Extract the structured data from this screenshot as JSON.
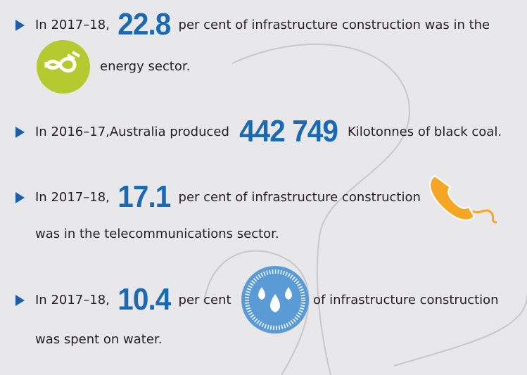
{
  "items": [
    {
      "prefix": "In 2017–18,",
      "number": "22.8",
      "text": "per cent of infrastructure construction was in the",
      "continuation": "energy sector."
    },
    {
      "prefix": "In 2016–17,Australia produced",
      "number": "442 749",
      "text": "Kilotonnes of black coal."
    },
    {
      "prefix": "In 2017–18,",
      "number": "17.1",
      "text": "per cent of infrastructure construction",
      "continuation": "was in the telecommunications sector."
    },
    {
      "prefix": "In 2017–18,",
      "number": "10.4",
      "text": "per cent",
      "text2": "of infrastructure construction",
      "continuation": "was spent on water."
    }
  ]
}
